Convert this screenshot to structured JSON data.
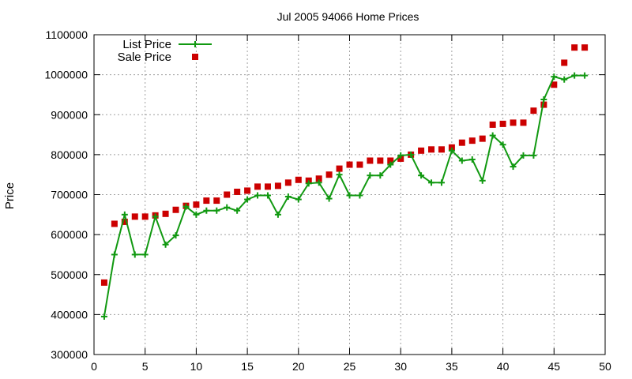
{
  "chart_data": {
    "type": "line",
    "title": "Jul 2005 94066 Home Prices",
    "xlabel": "",
    "ylabel": "Price",
    "xlim": [
      0,
      50
    ],
    "ylim": [
      300000,
      1100000
    ],
    "x_ticks": [
      0,
      5,
      10,
      15,
      20,
      25,
      30,
      35,
      40,
      45,
      50
    ],
    "y_ticks": [
      300000,
      400000,
      500000,
      600000,
      700000,
      800000,
      900000,
      1000000,
      1100000
    ],
    "grid": true,
    "legend_position": "top-left",
    "series": [
      {
        "name": "List Price",
        "style": "line-points",
        "marker": "plus",
        "color": "#119911",
        "x": [
          1,
          2,
          3,
          4,
          5,
          6,
          7,
          8,
          9,
          10,
          11,
          12,
          13,
          14,
          15,
          16,
          17,
          18,
          19,
          20,
          21,
          22,
          23,
          24,
          25,
          26,
          27,
          28,
          29,
          30,
          31,
          32,
          33,
          34,
          35,
          36,
          37,
          38,
          39,
          40,
          41,
          42,
          43,
          44,
          45,
          46,
          47,
          48
        ],
        "y": [
          395000,
          550000,
          650000,
          550000,
          550000,
          645000,
          575000,
          598000,
          670000,
          650000,
          660000,
          660000,
          668000,
          660000,
          688000,
          698000,
          698000,
          650000,
          695000,
          688000,
          728000,
          730000,
          690000,
          750000,
          698000,
          698000,
          748000,
          748000,
          775000,
          798000,
          800000,
          748000,
          730000,
          730000,
          810000,
          785000,
          788000,
          735000,
          848000,
          825000,
          770000,
          798000,
          798000,
          938000,
          995000,
          988000,
          998000,
          998000
        ]
      },
      {
        "name": "Sale Price",
        "style": "points",
        "marker": "square",
        "color": "#cc0000",
        "x": [
          1,
          2,
          3,
          4,
          5,
          6,
          7,
          8,
          9,
          10,
          11,
          12,
          13,
          14,
          15,
          16,
          17,
          18,
          19,
          20,
          21,
          22,
          23,
          24,
          25,
          26,
          27,
          28,
          29,
          30,
          31,
          32,
          33,
          34,
          35,
          36,
          37,
          38,
          39,
          40,
          41,
          42,
          43,
          44,
          45,
          46,
          47,
          48
        ],
        "y": [
          480000,
          627000,
          632000,
          645000,
          645000,
          648000,
          652000,
          662000,
          672000,
          675000,
          685000,
          685000,
          700000,
          707000,
          710000,
          720000,
          720000,
          722000,
          730000,
          737000,
          735000,
          740000,
          750000,
          765000,
          775000,
          775000,
          785000,
          785000,
          785000,
          790000,
          800000,
          810000,
          813000,
          813000,
          818000,
          830000,
          835000,
          840000,
          875000,
          877000,
          880000,
          880000,
          910000,
          925000,
          975000,
          1030000,
          1068000,
          1068000
        ]
      }
    ]
  }
}
